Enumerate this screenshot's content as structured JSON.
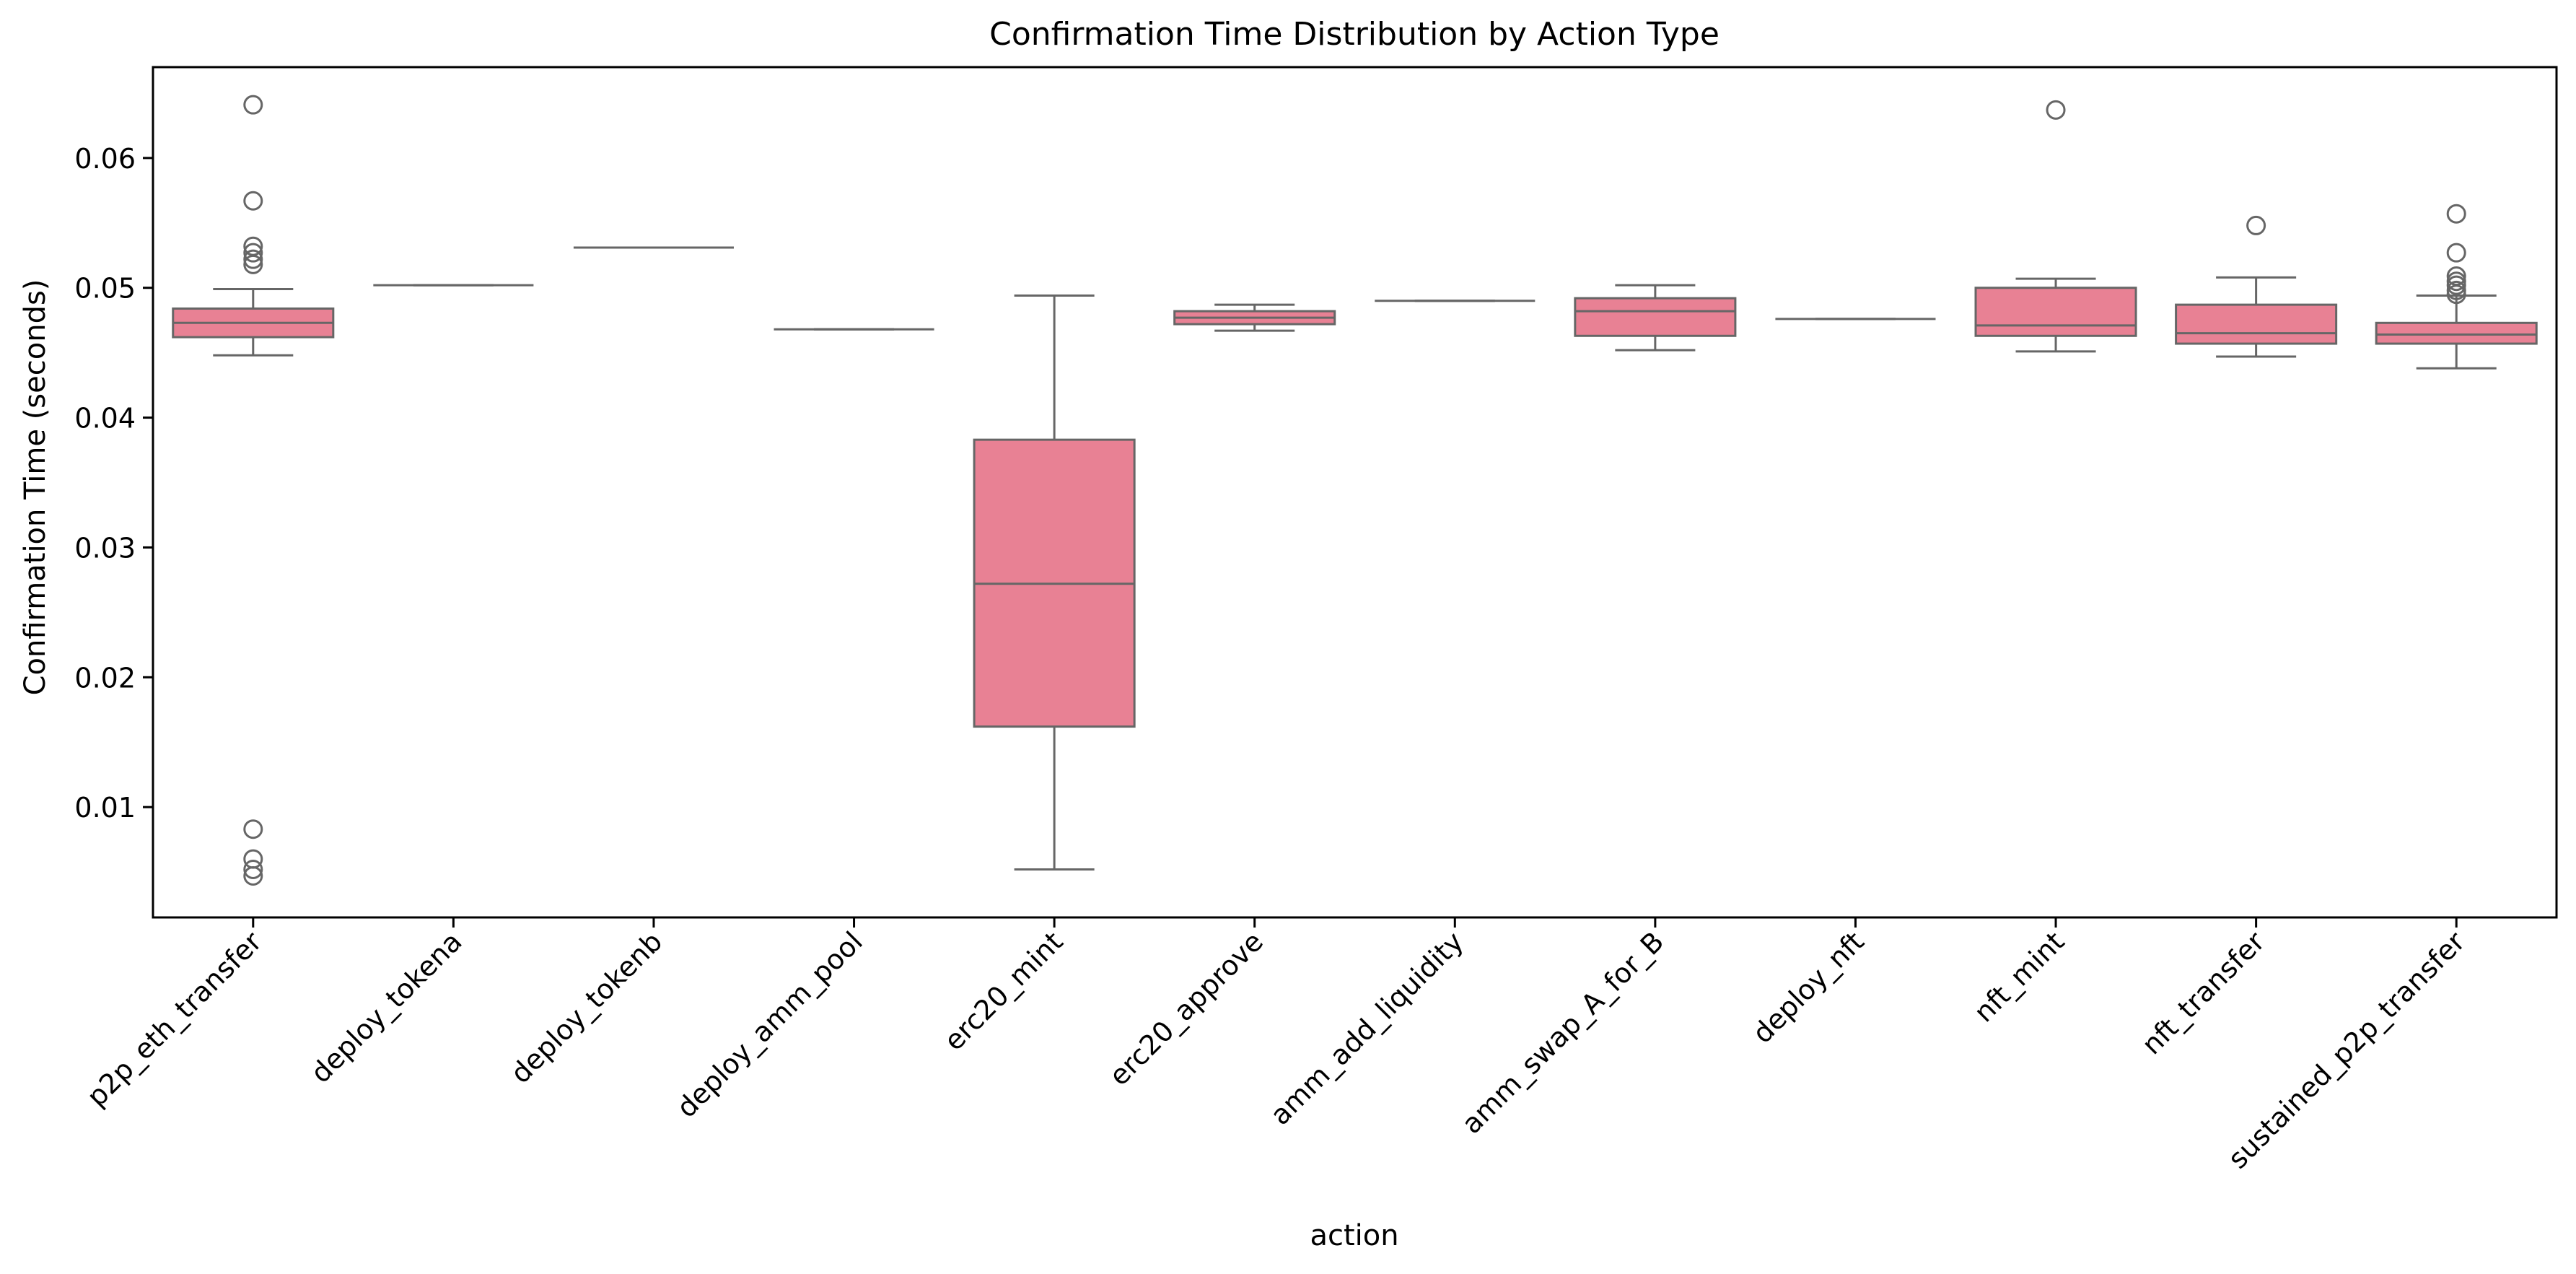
{
  "chart_data": {
    "type": "box",
    "title": "Confirmation Time Distribution by Action Type",
    "xlabel": "action",
    "ylabel": "Confirmation Time (seconds)",
    "ylim": [
      0.0015,
      0.067
    ],
    "yticks": [
      0.01,
      0.02,
      0.03,
      0.04,
      0.05,
      0.06
    ],
    "ytick_labels": [
      "0.01",
      "0.02",
      "0.03",
      "0.04",
      "0.05",
      "0.06"
    ],
    "box_color": "#e88194",
    "line_color": "#666666",
    "grid": false,
    "categories": [
      "p2p_eth_transfer",
      "deploy_tokena",
      "deploy_tokenb",
      "deploy_amm_pool",
      "erc20_mint",
      "erc20_approve",
      "amm_add_liquidity",
      "amm_swap_A_for_B",
      "deploy_nft",
      "nft_mint",
      "nft_transfer",
      "sustained_p2p_transfer"
    ],
    "boxes": [
      {
        "whislo": 0.0448,
        "q1": 0.0462,
        "med": 0.0473,
        "q3": 0.0484,
        "whishi": 0.0499,
        "fliers": [
          0.0641,
          0.0567,
          0.0532,
          0.0527,
          0.0522,
          0.0518,
          0.0083,
          0.006,
          0.0052,
          0.0047
        ]
      },
      {
        "whislo": 0.0502,
        "q1": 0.0502,
        "med": 0.0502,
        "q3": 0.0502,
        "whishi": 0.0502,
        "fliers": []
      },
      {
        "whislo": 0.0531,
        "q1": 0.0531,
        "med": 0.0531,
        "q3": 0.0531,
        "whishi": 0.0531,
        "fliers": []
      },
      {
        "whislo": 0.0468,
        "q1": 0.0468,
        "med": 0.0468,
        "q3": 0.0468,
        "whishi": 0.0468,
        "fliers": []
      },
      {
        "whislo": 0.0052,
        "q1": 0.0162,
        "med": 0.0272,
        "q3": 0.0383,
        "whishi": 0.0494,
        "fliers": []
      },
      {
        "whislo": 0.0467,
        "q1": 0.0472,
        "med": 0.0477,
        "q3": 0.0482,
        "whishi": 0.0487,
        "fliers": []
      },
      {
        "whislo": 0.049,
        "q1": 0.049,
        "med": 0.049,
        "q3": 0.049,
        "whishi": 0.049,
        "fliers": []
      },
      {
        "whislo": 0.0452,
        "q1": 0.0463,
        "med": 0.0482,
        "q3": 0.0492,
        "whishi": 0.0502,
        "fliers": []
      },
      {
        "whislo": 0.0476,
        "q1": 0.0476,
        "med": 0.0476,
        "q3": 0.0476,
        "whishi": 0.0476,
        "fliers": []
      },
      {
        "whislo": 0.0451,
        "q1": 0.0463,
        "med": 0.0471,
        "q3": 0.05,
        "whishi": 0.0507,
        "fliers": [
          0.0637
        ]
      },
      {
        "whislo": 0.0447,
        "q1": 0.0457,
        "med": 0.0465,
        "q3": 0.0487,
        "whishi": 0.0508,
        "fliers": [
          0.0548
        ]
      },
      {
        "whislo": 0.0438,
        "q1": 0.0457,
        "med": 0.0464,
        "q3": 0.0473,
        "whishi": 0.0494,
        "fliers": [
          0.0557,
          0.0527,
          0.0509,
          0.0505,
          0.0502,
          0.0498,
          0.0495
        ]
      }
    ]
  }
}
